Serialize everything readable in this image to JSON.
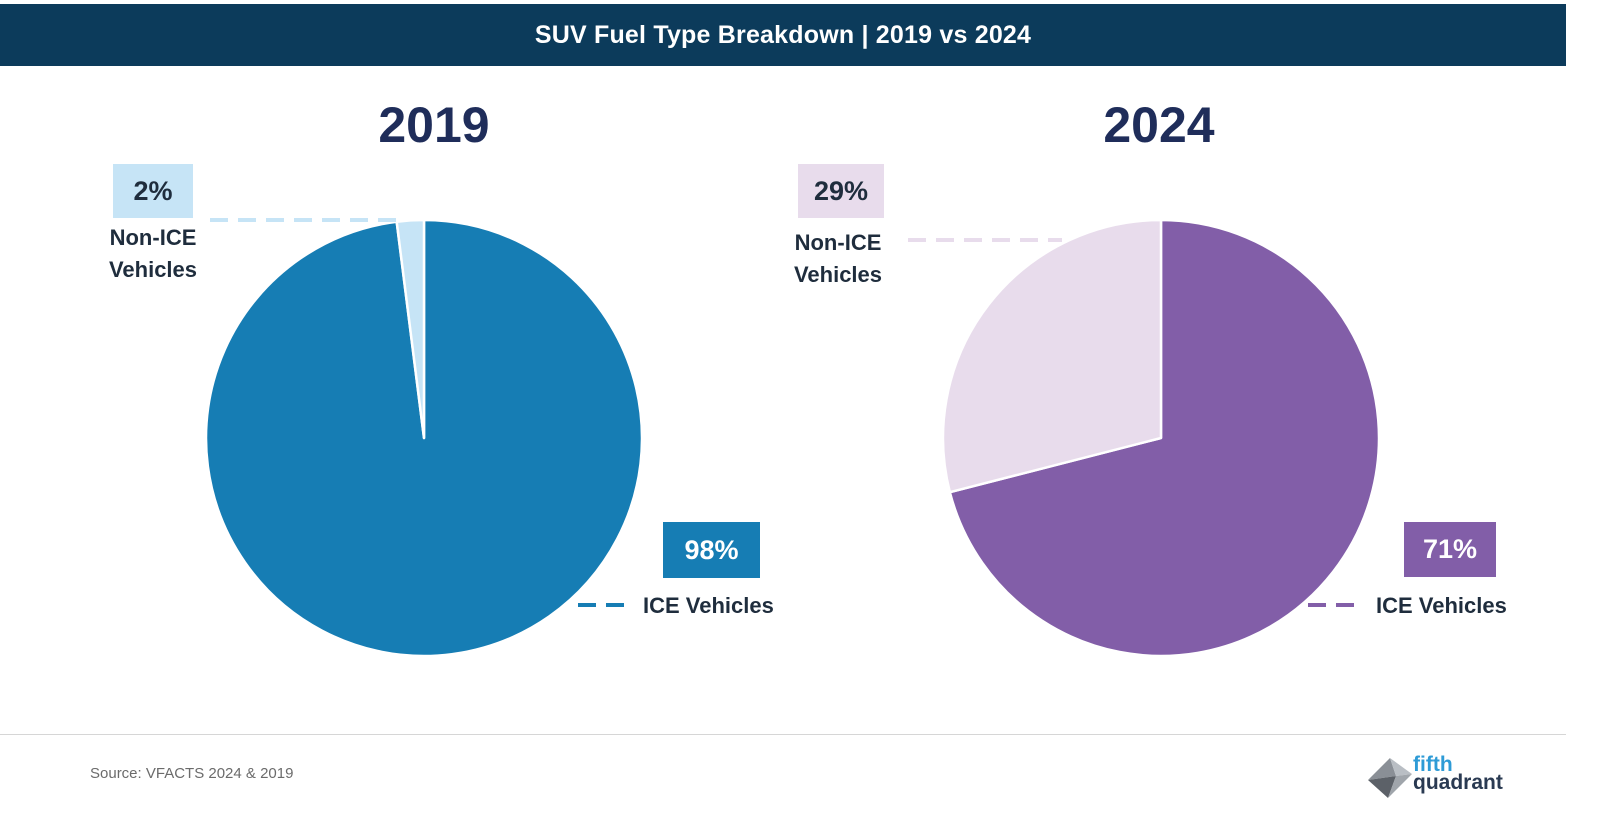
{
  "header": {
    "title": "SUV Fuel Type Breakdown | 2019 vs 2024"
  },
  "chart_data": [
    {
      "type": "pie",
      "title": "2019",
      "slices": [
        {
          "label": "ICE Vehicles",
          "value": 98,
          "display": "98%",
          "color": "#167db4"
        },
        {
          "label": "Non-ICE Vehicles",
          "value": 2,
          "display": "2%",
          "color": "#c6e4f6"
        }
      ]
    },
    {
      "type": "pie",
      "title": "2024",
      "slices": [
        {
          "label": "ICE Vehicles",
          "value": 71,
          "display": "71%",
          "color": "#825ea8"
        },
        {
          "label": "Non-ICE Vehicles",
          "value": 29,
          "display": "29%",
          "color": "#e8dcec"
        }
      ]
    }
  ],
  "labels": {
    "non_ice_line1": "Non-ICE",
    "non_ice_line2": "Vehicles",
    "ice": "ICE Vehicles"
  },
  "footer": {
    "source": "Source: VFACTS 2024 & 2019",
    "logo_line1": "fifth",
    "logo_line2": "quadrant"
  }
}
